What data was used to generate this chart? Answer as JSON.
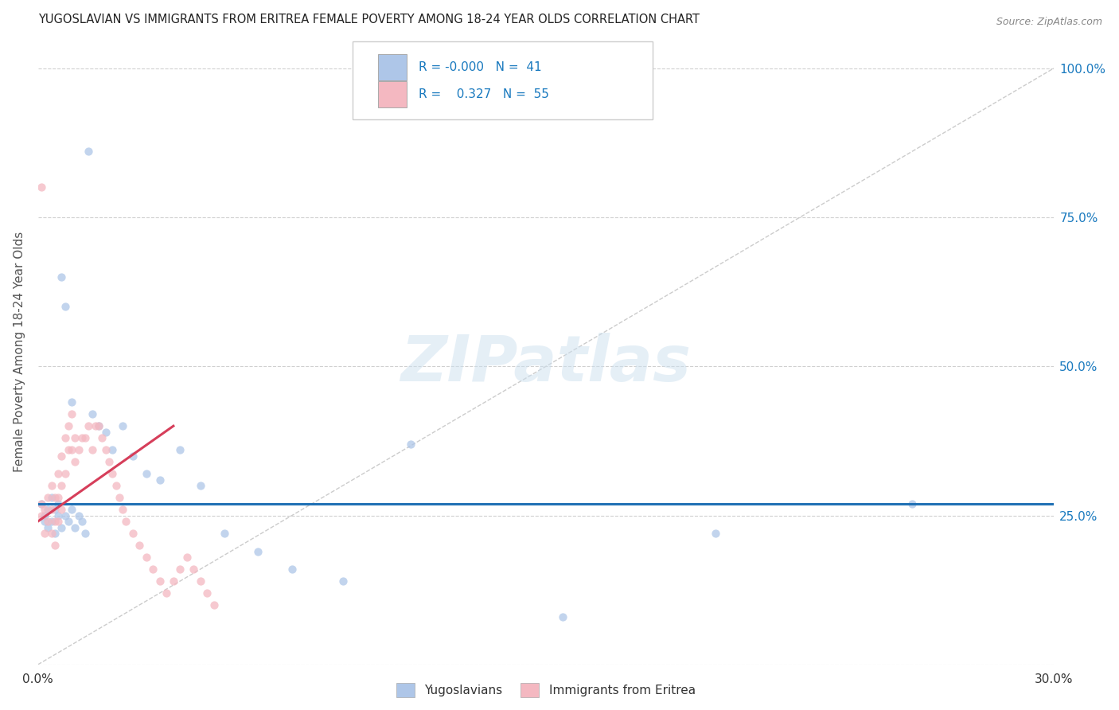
{
  "title": "YUGOSLAVIAN VS IMMIGRANTS FROM ERITREA FEMALE POVERTY AMONG 18-24 YEAR OLDS CORRELATION CHART",
  "source": "Source: ZipAtlas.com",
  "ylabel": "Female Poverty Among 18-24 Year Olds",
  "xlim": [
    0.0,
    0.3
  ],
  "ylim": [
    0.0,
    1.05
  ],
  "ytick_values": [
    0.0,
    0.25,
    0.5,
    0.75,
    1.0
  ],
  "right_ytick_labels": [
    "25.0%",
    "50.0%",
    "75.0%",
    "100.0%"
  ],
  "right_ytick_values": [
    0.25,
    0.5,
    0.75,
    1.0
  ],
  "color_yug": "#aec6e8",
  "color_eri": "#f4b8c1",
  "scatter_alpha": 0.75,
  "scatter_size": 55,
  "line_color_yug": "#2171b5",
  "line_color_eri": "#d63e5a",
  "ref_line_color": "#cccccc",
  "watermark": "ZIPatlas",
  "background_color": "#ffffff",
  "grid_color": "#d0d0d0",
  "title_color": "#222222",
  "axis_label_color": "#555555",
  "right_axis_color": "#1a7abf",
  "yug_x": [
    0.001,
    0.002,
    0.002,
    0.003,
    0.003,
    0.004,
    0.004,
    0.005,
    0.005,
    0.006,
    0.006,
    0.007,
    0.007,
    0.008,
    0.008,
    0.009,
    0.01,
    0.01,
    0.011,
    0.012,
    0.013,
    0.014,
    0.015,
    0.016,
    0.018,
    0.02,
    0.022,
    0.025,
    0.028,
    0.032,
    0.036,
    0.042,
    0.048,
    0.055,
    0.065,
    0.075,
    0.09,
    0.11,
    0.155,
    0.2,
    0.258
  ],
  "yug_y": [
    0.27,
    0.25,
    0.24,
    0.23,
    0.26,
    0.28,
    0.24,
    0.26,
    0.22,
    0.25,
    0.27,
    0.23,
    0.65,
    0.6,
    0.25,
    0.24,
    0.44,
    0.26,
    0.23,
    0.25,
    0.24,
    0.22,
    0.86,
    0.42,
    0.4,
    0.39,
    0.36,
    0.4,
    0.35,
    0.32,
    0.31,
    0.36,
    0.3,
    0.22,
    0.19,
    0.16,
    0.14,
    0.37,
    0.08,
    0.22,
    0.27
  ],
  "eri_x": [
    0.001,
    0.001,
    0.002,
    0.002,
    0.003,
    0.003,
    0.004,
    0.004,
    0.004,
    0.005,
    0.005,
    0.005,
    0.006,
    0.006,
    0.006,
    0.007,
    0.007,
    0.007,
    0.008,
    0.008,
    0.009,
    0.009,
    0.01,
    0.01,
    0.011,
    0.011,
    0.012,
    0.013,
    0.014,
    0.015,
    0.016,
    0.017,
    0.018,
    0.019,
    0.02,
    0.021,
    0.022,
    0.023,
    0.024,
    0.025,
    0.026,
    0.028,
    0.03,
    0.032,
    0.034,
    0.036,
    0.038,
    0.04,
    0.042,
    0.044,
    0.046,
    0.048,
    0.05,
    0.052,
    0.001
  ],
  "eri_y": [
    0.27,
    0.25,
    0.26,
    0.22,
    0.28,
    0.24,
    0.3,
    0.26,
    0.22,
    0.28,
    0.24,
    0.2,
    0.32,
    0.28,
    0.24,
    0.35,
    0.3,
    0.26,
    0.38,
    0.32,
    0.4,
    0.36,
    0.42,
    0.36,
    0.38,
    0.34,
    0.36,
    0.38,
    0.38,
    0.4,
    0.36,
    0.4,
    0.4,
    0.38,
    0.36,
    0.34,
    0.32,
    0.3,
    0.28,
    0.26,
    0.24,
    0.22,
    0.2,
    0.18,
    0.16,
    0.14,
    0.12,
    0.14,
    0.16,
    0.18,
    0.16,
    0.14,
    0.12,
    0.1,
    0.8
  ],
  "yug_trend_y": 0.27,
  "eri_trend_x0": 0.0,
  "eri_trend_y0": 0.24,
  "eri_trend_x1": 0.04,
  "eri_trend_y1": 0.4
}
